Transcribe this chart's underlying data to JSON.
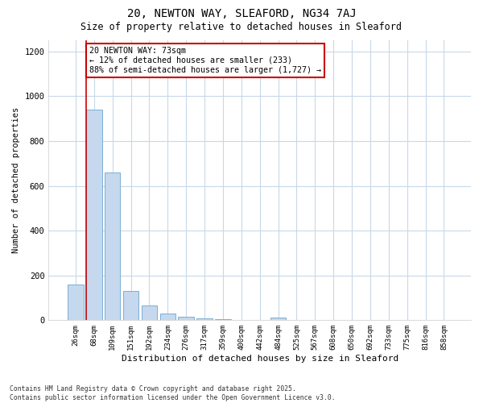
{
  "title1": "20, NEWTON WAY, SLEAFORD, NG34 7AJ",
  "title2": "Size of property relative to detached houses in Sleaford",
  "xlabel": "Distribution of detached houses by size in Sleaford",
  "ylabel": "Number of detached properties",
  "categories": [
    "26sqm",
    "68sqm",
    "109sqm",
    "151sqm",
    "192sqm",
    "234sqm",
    "276sqm",
    "317sqm",
    "359sqm",
    "400sqm",
    "442sqm",
    "484sqm",
    "525sqm",
    "567sqm",
    "608sqm",
    "650sqm",
    "692sqm",
    "733sqm",
    "775sqm",
    "816sqm",
    "858sqm"
  ],
  "values": [
    160,
    940,
    660,
    130,
    65,
    30,
    15,
    8,
    6,
    0,
    0,
    12,
    0,
    0,
    0,
    0,
    0,
    0,
    0,
    0,
    0
  ],
  "bar_color": "#c5d8ed",
  "bar_edge_color": "#7aafd4",
  "vline_color": "#cc0000",
  "annotation_text": "20 NEWTON WAY: 73sqm\n← 12% of detached houses are smaller (233)\n88% of semi-detached houses are larger (1,727) →",
  "annotation_box_color": "#cc0000",
  "ylim": [
    0,
    1250
  ],
  "yticks": [
    0,
    200,
    400,
    600,
    800,
    1000,
    1200
  ],
  "footer": "Contains HM Land Registry data © Crown copyright and database right 2025.\nContains public sector information licensed under the Open Government Licence v3.0.",
  "bg_color": "#ffffff",
  "plot_bg_color": "#ffffff",
  "grid_color": "#c8d8e8"
}
